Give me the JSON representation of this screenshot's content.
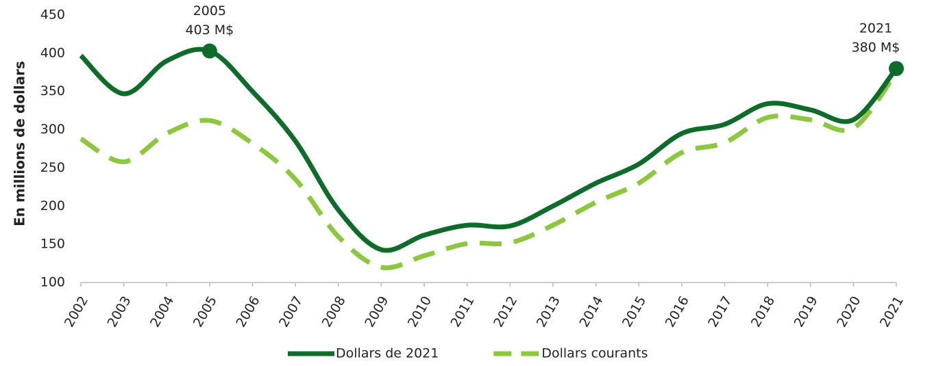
{
  "chart_data": {
    "type": "line",
    "y_label": "En millions de dollars",
    "categories": [
      "2002",
      "2003",
      "2004",
      "2005",
      "2006",
      "2007",
      "2008",
      "2009",
      "2010",
      "2011",
      "2012",
      "2013",
      "2014",
      "2015",
      "2016",
      "2017",
      "2018",
      "2019",
      "2020",
      "2021"
    ],
    "series": [
      {
        "name": "Dollars de 2021",
        "color": "#0f6b2a",
        "dash": false,
        "values": [
          397,
          347,
          390,
          403,
          350,
          285,
          195,
          143,
          162,
          175,
          174,
          200,
          230,
          255,
          295,
          307,
          334,
          326,
          313,
          380
        ]
      },
      {
        "name": "Dollars courants",
        "color": "#8dc63f",
        "dash": true,
        "values": [
          288,
          258,
          295,
          312,
          282,
          235,
          160,
          120,
          135,
          151,
          152,
          175,
          205,
          230,
          270,
          283,
          316,
          313,
          302,
          375
        ]
      }
    ],
    "annotations": [
      {
        "year_label": "2005",
        "value_label": "403 M$"
      },
      {
        "year_label": "2021",
        "value_label": "380 M$"
      }
    ],
    "ylim": [
      100,
      450
    ],
    "yticks": [
      100,
      150,
      200,
      250,
      300,
      350,
      400,
      450
    ],
    "grid": false,
    "legend": "bottom"
  }
}
